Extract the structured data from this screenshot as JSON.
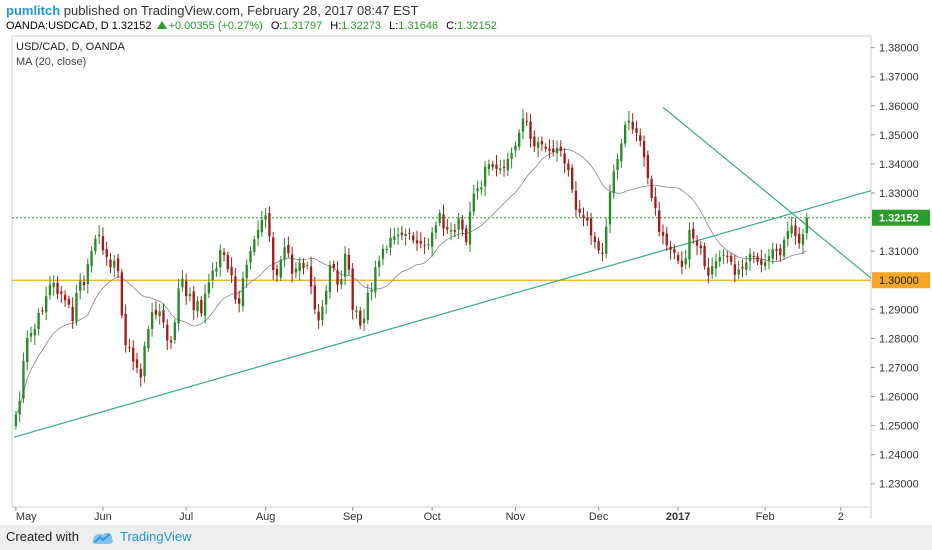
{
  "header": {
    "author": "pumlitch",
    "published_text": "published on TradingView.com, February 28, 2017 08:47 EST",
    "symbol_line": "OANDA:USDCAD, D",
    "last": "1.32152",
    "change": "+0.00355 (+0.27%)",
    "open_label": "O:",
    "open": "1.31797",
    "high_label": "H:",
    "high": "1.32273",
    "low_label": "L:",
    "low": "1.31646",
    "close_label": "C:",
    "close": "1.32152"
  },
  "footer": {
    "created_with": "Created with",
    "brand": "TradingView"
  },
  "colors": {
    "up": "#2a8a2a",
    "down": "#a31c1c",
    "trend": "#3aa88a",
    "support": "#f5a623",
    "ma": "#888888",
    "price_badge": "#2a9d2a"
  },
  "chart_data": {
    "type": "candlestick",
    "title": "USD/CAD, D, OANDA",
    "subtitle": "MA (20, close)",
    "ylim": [
      1.222,
      1.384
    ],
    "y_ticks": [
      "1.38000",
      "1.37000",
      "1.36000",
      "1.35000",
      "1.34000",
      "1.33000",
      "1.31000",
      "1.29000",
      "1.28000",
      "1.27000",
      "1.26000",
      "1.25000",
      "1.24000",
      "1.23000"
    ],
    "x_labels": [
      {
        "label": "May",
        "i": 0
      },
      {
        "label": "Jun",
        "i": 23
      },
      {
        "label": "Jul",
        "i": 45
      },
      {
        "label": "Aug",
        "i": 66
      },
      {
        "label": "Sep",
        "i": 89
      },
      {
        "label": "Oct",
        "i": 110
      },
      {
        "label": "Nov",
        "i": 132
      },
      {
        "label": "Dec",
        "i": 154
      },
      {
        "label": "2017",
        "i": 175
      },
      {
        "label": "Feb",
        "i": 198
      },
      {
        "label": "2",
        "i": 218
      }
    ],
    "n_slots": 227,
    "closes": [
      1.2538,
      1.2585,
      1.2722,
      1.2802,
      1.2818,
      1.2832,
      1.2888,
      1.2893,
      1.2945,
      1.2984,
      1.2991,
      1.2953,
      1.2954,
      1.2931,
      1.2916,
      1.2859,
      1.2956,
      1.2998,
      1.2983,
      1.3056,
      1.31,
      1.3143,
      1.3156,
      1.3103,
      1.3079,
      1.3044,
      1.3067,
      1.3031,
      1.288,
      1.2777,
      1.2768,
      1.272,
      1.2699,
      1.2666,
      1.2774,
      1.2832,
      1.289,
      1.2881,
      1.2893,
      1.2855,
      1.2793,
      1.2786,
      1.2855,
      1.2972,
      1.3005,
      1.2945,
      1.2953,
      1.2897,
      1.2929,
      1.2886,
      1.2954,
      1.2993,
      1.3034,
      1.3041,
      1.3104,
      1.3087,
      1.3038,
      1.3017,
      1.2934,
      1.2919,
      1.3007,
      1.3053,
      1.3101,
      1.314,
      1.3173,
      1.3208,
      1.3223,
      1.3151,
      1.3035,
      1.3017,
      1.3071,
      1.3113,
      1.3093,
      1.3022,
      1.304,
      1.306,
      1.3042,
      1.3052,
      1.2978,
      1.29,
      1.2862,
      1.2909,
      1.2964,
      1.3052,
      1.3041,
      1.2985,
      1.3004,
      1.3091,
      1.3036,
      1.2898,
      1.2896,
      1.2844,
      1.2868,
      1.2956,
      1.2967,
      1.3045,
      1.3066,
      1.3108,
      1.3108,
      1.3146,
      1.3151,
      1.3156,
      1.3156,
      1.3159,
      1.3162,
      1.3137,
      1.3127,
      1.3126,
      1.3119,
      1.3123,
      1.3164,
      1.3189,
      1.3231,
      1.3178,
      1.3175,
      1.3172,
      1.3167,
      1.3213,
      1.3174,
      1.3131,
      1.3236,
      1.3298,
      1.3316,
      1.3319,
      1.339,
      1.3399,
      1.339,
      1.3383,
      1.3385,
      1.3386,
      1.3417,
      1.3438,
      1.3463,
      1.3507,
      1.3556,
      1.3546,
      1.3486,
      1.346,
      1.3475,
      1.3467,
      1.3452,
      1.3445,
      1.3441,
      1.3455,
      1.3444,
      1.3401,
      1.3379,
      1.3312,
      1.3242,
      1.3232,
      1.3215,
      1.3205,
      1.3154,
      1.3131,
      1.3103,
      1.3091,
      1.3184,
      1.3303,
      1.3375,
      1.3417,
      1.347,
      1.3534,
      1.3549,
      1.3519,
      1.3507,
      1.3479,
      1.3423,
      1.3352,
      1.3283,
      1.3248,
      1.3166,
      1.3153,
      1.312,
      1.3104,
      1.3094,
      1.3067,
      1.3046,
      1.3075,
      1.3173,
      1.3144,
      1.3119,
      1.311,
      1.3048,
      1.3016,
      1.3049,
      1.3065,
      1.308,
      1.3088,
      1.308,
      1.3063,
      1.3019,
      1.3038,
      1.304,
      1.3061,
      1.3091,
      1.3082,
      1.3064,
      1.3053,
      1.3063,
      1.3082,
      1.3107,
      1.3101,
      1.3086,
      1.3138,
      1.3169,
      1.3188,
      1.3152,
      1.3127,
      1.3158,
      1.3215
    ]
  }
}
